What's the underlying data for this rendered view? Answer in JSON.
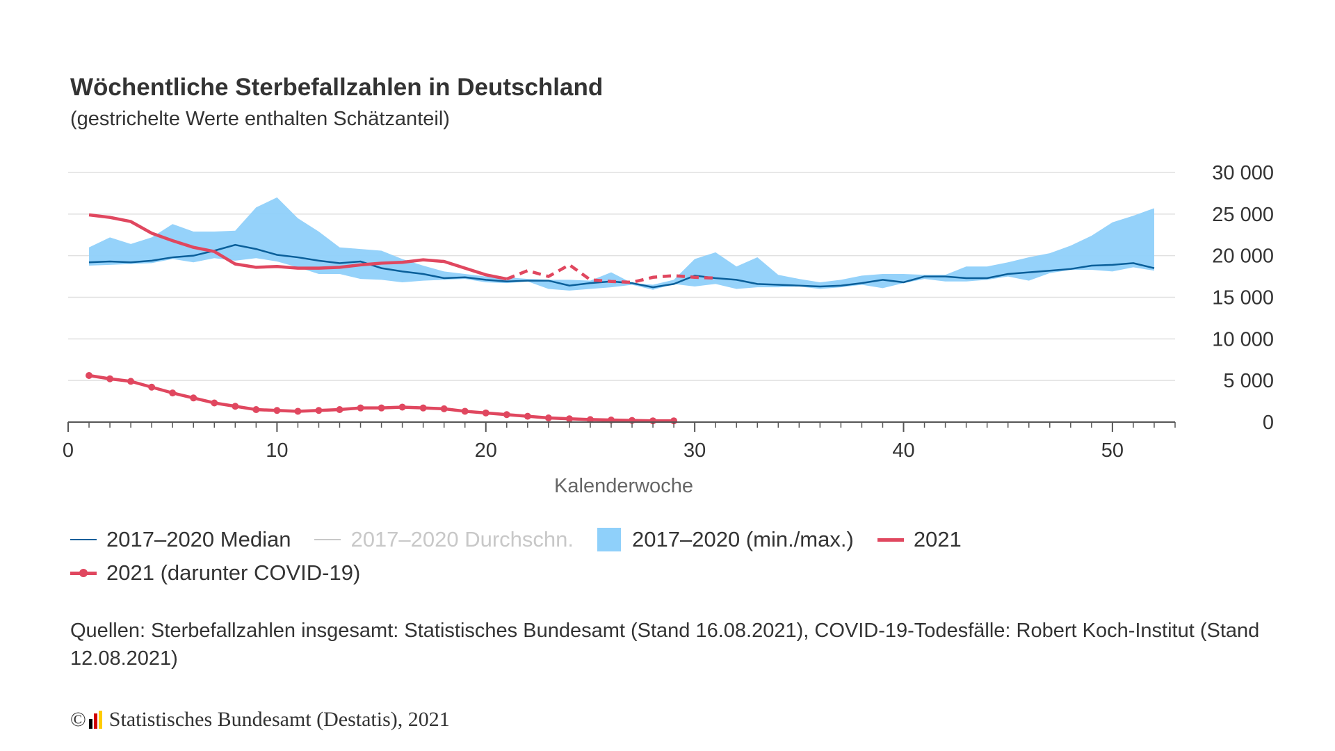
{
  "title": "Wöchentliche Sterbefallzahlen in Deutschland",
  "subtitle": "(gestrichelte Werte enthalten Schätzanteil)",
  "legend": {
    "median": "2017–2020 Median",
    "mean": "2017–2020 Durchschn.",
    "range": "2017–2020 (min./max.)",
    "y2021": "2021",
    "covid": "2021 (darunter COVID-19)"
  },
  "sources": "Quellen: Sterbefallzahlen insgesamt: Statistisches Bundesamt (Stand 16.08.2021), COVID-19-Todesfälle: Robert Koch-Institut (Stand 12.08.2021)",
  "credit": {
    "copyright": "©",
    "text": "Statistisches Bundesamt (Destatis), 2021",
    "logo_colors": [
      "#000000",
      "#d00000",
      "#ffcc00"
    ]
  },
  "colors": {
    "median": "#0a5f9a",
    "range": "#8fd0fa",
    "y2021": "#e0475f",
    "covid": "#e0475f",
    "mean": "#c8c8c8",
    "grid": "#e0e0e0",
    "axis": "#555555"
  },
  "chart_data": {
    "type": "line",
    "title": "Wöchentliche Sterbefallzahlen in Deutschland",
    "xlabel": "Kalenderwoche",
    "ylabel": "",
    "xlim": [
      0,
      53
    ],
    "ylim": [
      0,
      30000
    ],
    "x_ticks": [
      0,
      10,
      20,
      30,
      40,
      50
    ],
    "y_ticks": [
      0,
      5000,
      10000,
      15000,
      20000,
      25000,
      30000
    ],
    "x_tick_labels": [
      "0",
      "10",
      "20",
      "30",
      "40",
      "50"
    ],
    "y_tick_labels": [
      "0",
      "5 000",
      "10 000",
      "15 000",
      "20 000",
      "25 000",
      "30 000"
    ],
    "y_axis_position": "right",
    "grid": true,
    "weeks": [
      1,
      2,
      3,
      4,
      5,
      6,
      7,
      8,
      9,
      10,
      11,
      12,
      13,
      14,
      15,
      16,
      17,
      18,
      19,
      20,
      21,
      22,
      23,
      24,
      25,
      26,
      27,
      28,
      29,
      30,
      31,
      32,
      33,
      34,
      35,
      36,
      37,
      38,
      39,
      40,
      41,
      42,
      43,
      44,
      45,
      46,
      47,
      48,
      49,
      50,
      51,
      52
    ],
    "series": [
      {
        "name": "2017–2020 (min./max.)",
        "kind": "range",
        "min": [
          18800,
          18900,
          19000,
          19100,
          19600,
          19200,
          19700,
          19400,
          19700,
          19300,
          18600,
          17800,
          17800,
          17200,
          17100,
          16800,
          17000,
          17100,
          17200,
          16800,
          16700,
          16900,
          16000,
          15800,
          16000,
          16200,
          16500,
          15900,
          16600,
          16300,
          16600,
          16000,
          16200,
          16200,
          16300,
          16000,
          16200,
          16500,
          16100,
          16700,
          17200,
          16900,
          16900,
          17100,
          17500,
          17000,
          17900,
          18300,
          18300,
          18100,
          18600,
          18200
        ],
        "max": [
          21000,
          22200,
          21400,
          22200,
          23800,
          22900,
          22900,
          23000,
          25800,
          27000,
          24500,
          22900,
          21000,
          20800,
          20600,
          19600,
          18800,
          18100,
          17800,
          17500,
          17400,
          17200,
          17100,
          17100,
          17000,
          18000,
          16700,
          16500,
          17100,
          19600,
          20400,
          18700,
          19800,
          17700,
          17200,
          16800,
          17100,
          17600,
          17800,
          17800,
          17700,
          17700,
          18700,
          18700,
          19200,
          19800,
          20300,
          21200,
          22400,
          24000,
          24800,
          25700
        ],
        "values_min_max": true
      },
      {
        "name": "2017–2020 Median",
        "kind": "line",
        "values": [
          19200,
          19300,
          19200,
          19400,
          19800,
          20000,
          20600,
          21300,
          20800,
          20100,
          19800,
          19400,
          19100,
          19300,
          18500,
          18100,
          17800,
          17300,
          17400,
          17100,
          16900,
          17000,
          17000,
          16400,
          16700,
          16900,
          16700,
          16200,
          16600,
          17600,
          17300,
          17100,
          16600,
          16500,
          16400,
          16300,
          16400,
          16700,
          17100,
          16800,
          17500,
          17500,
          17300,
          17300,
          17800,
          18000,
          18200,
          18400,
          18800,
          18900,
          19100,
          18500
        ]
      },
      {
        "name": "2021",
        "kind": "line",
        "values": [
          24900,
          24600,
          24100,
          22700,
          21800,
          21000,
          20500,
          19000,
          18600,
          18700,
          18500,
          18500,
          18600,
          18900,
          19100,
          19200,
          19500,
          19300,
          18500,
          17700,
          17200,
          18200,
          17500,
          18900,
          17100,
          16900,
          16800,
          17400,
          17600,
          17400,
          17300
        ],
        "estimated_from_week": 21
      },
      {
        "name": "2021 (darunter COVID-19)",
        "kind": "line-markers",
        "values": [
          5600,
          5200,
          4900,
          4200,
          3500,
          2900,
          2300,
          1900,
          1500,
          1400,
          1300,
          1400,
          1500,
          1700,
          1700,
          1800,
          1700,
          1600,
          1300,
          1100,
          900,
          700,
          500,
          400,
          300,
          250,
          200,
          150,
          150
        ]
      },
      {
        "name": "2017–2020 Durchschn.",
        "kind": "line",
        "hidden": true,
        "values": []
      }
    ]
  }
}
